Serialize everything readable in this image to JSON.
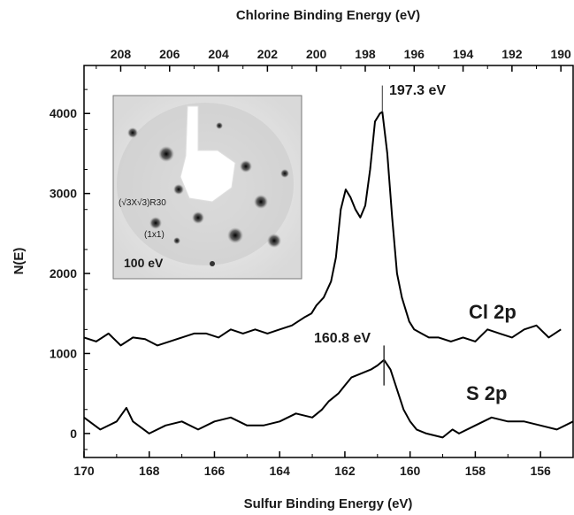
{
  "chart_data": {
    "type": "line",
    "top_axis": {
      "label": "Chlorine Binding Energy (eV)",
      "range": [
        209.5,
        189.5
      ],
      "ticks": [
        208,
        206,
        204,
        202,
        200,
        198,
        196,
        194,
        192,
        190
      ]
    },
    "bottom_axis": {
      "label": "Sulfur Binding Energy (eV)",
      "range": [
        170,
        155
      ],
      "ticks": [
        170,
        168,
        166,
        164,
        162,
        160,
        158,
        156
      ]
    },
    "y_axis": {
      "label": "N(E)",
      "range": [
        -300,
        4600
      ],
      "ticks": [
        0,
        1000,
        2000,
        3000,
        4000
      ]
    },
    "grid": false,
    "series": [
      {
        "name": "Cl 2p",
        "axis": "top",
        "color": "#000000",
        "x": [
          209.5,
          209.0,
          208.5,
          208.0,
          207.5,
          207.0,
          206.5,
          206.0,
          205.5,
          205.0,
          204.5,
          204.0,
          203.5,
          203.0,
          202.5,
          202.0,
          201.5,
          201.0,
          200.5,
          200.2,
          200.0,
          199.7,
          199.4,
          199.2,
          199.0,
          198.8,
          198.6,
          198.4,
          198.2,
          198.0,
          197.8,
          197.6,
          197.4,
          197.3,
          197.1,
          196.9,
          196.7,
          196.5,
          196.2,
          196.0,
          195.7,
          195.4,
          195.0,
          194.5,
          194.0,
          193.5,
          193.0,
          192.5,
          192.0,
          191.5,
          191.0,
          190.5,
          190.0
        ],
        "y": [
          1200,
          1150,
          1250,
          1100,
          1200,
          1180,
          1100,
          1150,
          1200,
          1250,
          1250,
          1200,
          1300,
          1250,
          1300,
          1250,
          1300,
          1350,
          1450,
          1500,
          1600,
          1700,
          1900,
          2200,
          2800,
          3050,
          2950,
          2800,
          2700,
          2850,
          3300,
          3900,
          4000,
          4020,
          3500,
          2700,
          2000,
          1700,
          1400,
          1300,
          1250,
          1200,
          1200,
          1150,
          1200,
          1150,
          1300,
          1250,
          1200,
          1300,
          1350,
          1200,
          1300
        ]
      },
      {
        "name": "S 2p",
        "axis": "bottom",
        "color": "#000000",
        "x": [
          170.0,
          169.5,
          169.0,
          168.7,
          168.5,
          168.0,
          167.5,
          167.0,
          166.5,
          166.0,
          165.5,
          165.0,
          164.5,
          164.0,
          163.5,
          163.0,
          162.7,
          162.5,
          162.2,
          162.0,
          161.8,
          161.5,
          161.2,
          161.0,
          160.8,
          160.6,
          160.4,
          160.2,
          160.0,
          159.8,
          159.5,
          159.0,
          158.7,
          158.5,
          158.0,
          157.5,
          157.0,
          156.5,
          156.0,
          155.5,
          155.0
        ],
        "y": [
          200,
          50,
          150,
          320,
          150,
          0,
          100,
          150,
          50,
          150,
          200,
          100,
          100,
          150,
          250,
          200,
          300,
          400,
          500,
          600,
          700,
          750,
          800,
          850,
          920,
          800,
          550,
          300,
          150,
          50,
          0,
          -50,
          50,
          0,
          100,
          200,
          150,
          150,
          100,
          50,
          150
        ]
      }
    ],
    "annotations": {
      "cl_label": "Cl 2p",
      "s_label": "S 2p",
      "cl_peak_label": "197.3 eV",
      "s_peak_label": "160.8 eV",
      "cl_peak_x": 197.3,
      "s_peak_x": 160.8
    },
    "inset": {
      "structure_label": "(√3X√3)R30",
      "cell_label": "(1x1)",
      "energy_label": "100 eV"
    }
  }
}
